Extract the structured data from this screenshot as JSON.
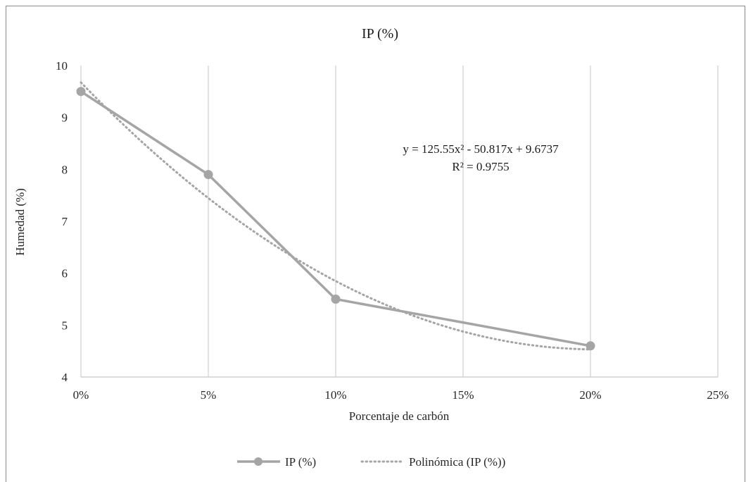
{
  "chart_data": {
    "type": "line",
    "title": "IP (%)",
    "xlabel": "Porcentaje de carbón",
    "ylabel": "Humedad (%)",
    "x_ticks": [
      "0%",
      "5%",
      "10%",
      "15%",
      "20%",
      "25%"
    ],
    "y_ticks": [
      "4",
      "5",
      "6",
      "7",
      "8",
      "9",
      "10"
    ],
    "xlim": [
      0,
      0.25
    ],
    "ylim": [
      4,
      10
    ],
    "grid": "vertical",
    "legend_position": "bottom",
    "series": [
      {
        "name": "IP (%)",
        "x": [
          0,
          0.05,
          0.1,
          0.2
        ],
        "y": [
          9.5,
          7.9,
          5.5,
          4.6
        ],
        "color": "#a5a5a5",
        "marker": "circle"
      }
    ],
    "trendline": {
      "name": "Polinómica (IP (%))",
      "type": "polynomial",
      "order": 2,
      "coefficients": [
        125.55,
        -50.817,
        9.6737
      ],
      "x_range": [
        0,
        0.2
      ],
      "color": "#a5a5a5",
      "style": "dotted",
      "equation": "y = 125.55x² - 50.817x + 9.6737",
      "r2": "R² = 0.9755"
    }
  }
}
